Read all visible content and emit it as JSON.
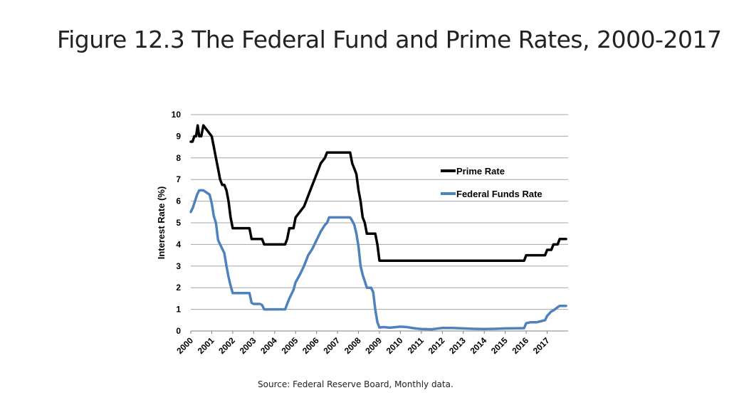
{
  "slide": {
    "title": "Figure 12.3 The Federal Fund and Prime Rates, 2000-2017",
    "source": "Source: Federal Reserve Board, Monthly data."
  },
  "chart_data": {
    "type": "line",
    "ylabel": "Interest Rate (%)",
    "xlabel": "",
    "ylim": [
      0,
      10
    ],
    "xlim": [
      2000,
      2018
    ],
    "yticks": [
      "0",
      "1",
      "2",
      "3",
      "4",
      "5",
      "6",
      "7",
      "8",
      "9",
      "10"
    ],
    "xticks": [
      "2000",
      "2001",
      "2002",
      "2003",
      "2004",
      "2005",
      "2006",
      "2007",
      "2008",
      "2009",
      "2010",
      "2011",
      "2012",
      "2013",
      "2014",
      "2015",
      "2016",
      "2017"
    ],
    "grid": true,
    "legend_position": "right",
    "colors": {
      "prime": "#000000",
      "fedfunds": "#4f81bd",
      "grid": "#a6a6a6"
    },
    "series": [
      {
        "name": "Prime Rate",
        "x": [
          2000.0,
          2000.08,
          2000.17,
          2000.25,
          2000.33,
          2000.4,
          2000.5,
          2000.6,
          2001.0,
          2001.1,
          2001.2,
          2001.3,
          2001.4,
          2001.5,
          2001.6,
          2001.7,
          2001.8,
          2001.9,
          2002.0,
          2002.8,
          2002.9,
          2003.4,
          2003.5,
          2004.5,
          2004.6,
          2004.7,
          2004.9,
          2005.0,
          2005.2,
          2005.4,
          2005.6,
          2005.8,
          2006.0,
          2006.2,
          2006.4,
          2006.5,
          2006.6,
          2007.6,
          2007.7,
          2007.8,
          2007.9,
          2008.0,
          2008.1,
          2008.2,
          2008.3,
          2008.4,
          2008.5,
          2008.8,
          2008.9,
          2009.0,
          2015.9,
          2016.0,
          2016.9,
          2017.0,
          2017.2,
          2017.3,
          2017.5,
          2017.6,
          2017.9
        ],
        "y": [
          8.75,
          8.75,
          9.0,
          9.0,
          9.5,
          9.0,
          9.0,
          9.5,
          9.0,
          8.5,
          8.0,
          7.5,
          7.0,
          6.75,
          6.75,
          6.5,
          6.0,
          5.25,
          4.75,
          4.75,
          4.25,
          4.25,
          4.0,
          4.0,
          4.25,
          4.75,
          4.75,
          5.25,
          5.5,
          5.75,
          6.25,
          6.75,
          7.25,
          7.75,
          8.0,
          8.25,
          8.25,
          8.25,
          7.75,
          7.5,
          7.25,
          6.5,
          6.0,
          5.25,
          5.0,
          4.5,
          4.5,
          4.5,
          4.0,
          3.25,
          3.25,
          3.5,
          3.5,
          3.75,
          3.75,
          4.0,
          4.0,
          4.25,
          4.25
        ]
      },
      {
        "name": "Federal Funds Rate",
        "x": [
          2000.0,
          2000.1,
          2000.2,
          2000.3,
          2000.4,
          2000.5,
          2000.6,
          2000.9,
          2001.0,
          2001.1,
          2001.2,
          2001.3,
          2001.4,
          2001.5,
          2001.6,
          2001.7,
          2001.8,
          2001.9,
          2002.0,
          2002.2,
          2002.5,
          2002.8,
          2002.9,
          2003.0,
          2003.3,
          2003.4,
          2003.5,
          2004.0,
          2004.5,
          2004.6,
          2004.7,
          2004.9,
          2005.0,
          2005.2,
          2005.4,
          2005.6,
          2005.8,
          2006.0,
          2006.2,
          2006.4,
          2006.5,
          2006.6,
          2007.6,
          2007.7,
          2007.8,
          2007.9,
          2008.0,
          2008.1,
          2008.2,
          2008.3,
          2008.4,
          2008.5,
          2008.6,
          2008.7,
          2008.8,
          2008.9,
          2009.0,
          2009.2,
          2009.5,
          2009.8,
          2010.0,
          2010.3,
          2010.7,
          2011.0,
          2011.5,
          2012.0,
          2012.5,
          2013.0,
          2013.5,
          2014.0,
          2014.5,
          2015.0,
          2015.9,
          2016.0,
          2016.2,
          2016.5,
          2016.9,
          2017.0,
          2017.2,
          2017.3,
          2017.5,
          2017.6,
          2017.9
        ],
        "y": [
          5.5,
          5.7,
          6.0,
          6.3,
          6.5,
          6.5,
          6.5,
          6.3,
          5.9,
          5.3,
          5.0,
          4.2,
          4.0,
          3.8,
          3.6,
          3.0,
          2.5,
          2.1,
          1.75,
          1.75,
          1.75,
          1.75,
          1.3,
          1.25,
          1.25,
          1.2,
          1.0,
          1.0,
          1.0,
          1.25,
          1.5,
          1.9,
          2.25,
          2.6,
          3.0,
          3.5,
          3.8,
          4.2,
          4.6,
          4.9,
          5.0,
          5.25,
          5.25,
          5.1,
          4.9,
          4.5,
          3.9,
          3.0,
          2.6,
          2.3,
          2.0,
          2.0,
          2.0,
          1.8,
          1.0,
          0.4,
          0.16,
          0.18,
          0.15,
          0.18,
          0.2,
          0.18,
          0.12,
          0.09,
          0.08,
          0.14,
          0.14,
          0.12,
          0.1,
          0.09,
          0.1,
          0.12,
          0.13,
          0.36,
          0.4,
          0.4,
          0.5,
          0.7,
          0.9,
          0.95,
          1.1,
          1.16,
          1.16
        ]
      }
    ]
  }
}
